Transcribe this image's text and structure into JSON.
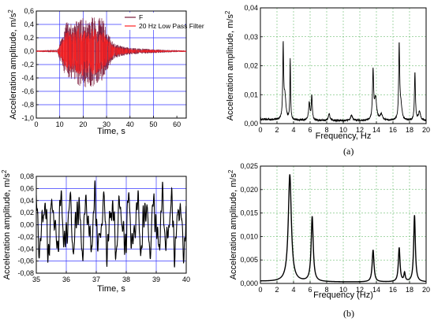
{
  "panel_labels": {
    "a": "(a)",
    "b": "(b)"
  },
  "chart_data": [
    {
      "id": "tl",
      "type": "line",
      "xlabel": "Time, s",
      "ylabel": "Acceleration amplitude, m/s",
      "ylabel_sup": "2",
      "xlim": [
        0,
        64
      ],
      "ylim": [
        -1.0,
        0.6
      ],
      "x_ticks": [
        0,
        10,
        20,
        30,
        40,
        50,
        60
      ],
      "y_ticks": [
        0.6,
        0.4,
        0.2,
        0.0,
        -0.2,
        -0.4,
        -0.6,
        -0.8,
        -1.0
      ],
      "y_tick_labels": [
        "0,6",
        "0,4",
        "0,2",
        "0,0",
        "-0,2",
        "-0,4",
        "-0,6",
        "-0,8",
        "-1,0"
      ],
      "grid": true,
      "legend_position": "top-right",
      "series": [
        {
          "name": "F",
          "color": "#7a1a3a",
          "envelope": {
            "x": [
              0,
              9,
              11,
              13,
              16,
              18,
              20,
              22,
              24,
              26,
              28,
              30,
              33,
              36,
              40,
              45,
              50,
              55,
              64
            ],
            "upper": [
              0.01,
              0.02,
              0.22,
              0.45,
              0.38,
              0.55,
              0.5,
              0.45,
              0.55,
              0.45,
              0.55,
              0.3,
              0.12,
              0.08,
              0.05,
              0.04,
              0.03,
              0.02,
              0.01
            ],
            "lower": [
              -0.01,
              -0.02,
              -0.25,
              -0.45,
              -0.4,
              -0.52,
              -0.62,
              -0.5,
              -0.55,
              -0.5,
              -0.45,
              -0.3,
              -0.12,
              -0.08,
              -0.05,
              -0.04,
              -0.03,
              -0.02,
              -0.01
            ]
          }
        },
        {
          "name": "20 Hz Low Pass Filter",
          "color": "#ff2020",
          "envelope": {
            "x": [
              0,
              9,
              11,
              13,
              16,
              18,
              20,
              22,
              24,
              26,
              28,
              30,
              33,
              36,
              40,
              45,
              50,
              55,
              64
            ],
            "upper": [
              0.01,
              0.01,
              0.15,
              0.3,
              0.28,
              0.35,
              0.33,
              0.3,
              0.35,
              0.3,
              0.33,
              0.2,
              0.08,
              0.05,
              0.03,
              0.02,
              0.02,
              0.01,
              0.01
            ],
            "lower": [
              -0.01,
              -0.01,
              -0.16,
              -0.3,
              -0.28,
              -0.35,
              -0.38,
              -0.32,
              -0.35,
              -0.33,
              -0.3,
              -0.2,
              -0.08,
              -0.05,
              -0.03,
              -0.02,
              -0.02,
              -0.01,
              -0.01
            ]
          }
        }
      ]
    },
    {
      "id": "tr",
      "type": "line",
      "xlabel": "Frequency,  Hz",
      "ylabel": "Acceleration amplitude, m/s",
      "ylabel_sup": "2",
      "xlim": [
        0,
        20
      ],
      "ylim": [
        0,
        0.04
      ],
      "x_ticks": [
        0,
        2,
        4,
        6,
        8,
        10,
        12,
        14,
        16,
        18,
        20
      ],
      "y_ticks": [
        0,
        0.01,
        0.02,
        0.03,
        0.04
      ],
      "y_tick_labels": [
        "0,00",
        "0,01",
        "0,02",
        "0,03",
        "0,04"
      ],
      "grid": true,
      "baseline": 0.001,
      "series": [
        {
          "name": "",
          "color": "#000000",
          "peaks": [
            {
              "f": 2.75,
              "a": 0.0248,
              "w": 0.06
            },
            {
              "f": 2.95,
              "a": 0.008,
              "w": 0.15
            },
            {
              "f": 3.6,
              "a": 0.021,
              "w": 0.05
            },
            {
              "f": 5.9,
              "a": 0.006,
              "w": 0.1
            },
            {
              "f": 6.2,
              "a": 0.0085,
              "w": 0.07
            },
            {
              "f": 8.3,
              "a": 0.0025,
              "w": 0.1
            },
            {
              "f": 11.0,
              "a": 0.0018,
              "w": 0.15
            },
            {
              "f": 13.6,
              "a": 0.017,
              "w": 0.08
            },
            {
              "f": 13.9,
              "a": 0.0075,
              "w": 0.15
            },
            {
              "f": 14.6,
              "a": 0.0022,
              "w": 0.15
            },
            {
              "f": 16.75,
              "a": 0.0255,
              "w": 0.07
            },
            {
              "f": 16.95,
              "a": 0.005,
              "w": 0.15
            },
            {
              "f": 18.65,
              "a": 0.0165,
              "w": 0.07
            },
            {
              "f": 19.2,
              "a": 0.003,
              "w": 0.15
            }
          ]
        }
      ]
    },
    {
      "id": "bl",
      "type": "line",
      "xlabel": "Time, s",
      "ylabel": "Acceleration amplitude, m/s",
      "ylabel_sup": "2",
      "xlim": [
        35,
        40
      ],
      "ylim": [
        -0.08,
        0.08
      ],
      "x_ticks": [
        35,
        36,
        37,
        38,
        39,
        40
      ],
      "y_ticks": [
        0.08,
        0.06,
        0.04,
        0.02,
        0.0,
        -0.02,
        -0.04,
        -0.06,
        -0.08
      ],
      "y_tick_labels": [
        "0,08",
        "0,06",
        "0,04",
        "0,02",
        "0,00",
        "-0,02",
        "-0,04",
        "-0,06",
        "-0,08"
      ],
      "grid": true,
      "series": [
        {
          "name": "",
          "color": "#000000",
          "components": [
            {
              "amp": 0.035,
              "freq": 3.55,
              "phase": 0.4
            },
            {
              "amp": 0.018,
              "freq": 6.2,
              "phase": 1.2
            },
            {
              "amp": 0.01,
              "freq": 13.7,
              "phase": 0.2
            },
            {
              "amp": 0.007,
              "freq": 16.8,
              "phase": 2.1
            },
            {
              "amp": 0.006,
              "freq": 18.7,
              "phase": 0.9
            }
          ]
        }
      ]
    },
    {
      "id": "br",
      "type": "line",
      "xlabel": "Frequency (Hz)",
      "ylabel": "Acceleration amplitude, m/s",
      "ylabel_sup": "2",
      "xlim": [
        0,
        20
      ],
      "ylim": [
        0,
        0.025
      ],
      "x_ticks": [
        0,
        2,
        4,
        6,
        8,
        10,
        12,
        14,
        16,
        18,
        20
      ],
      "y_ticks": [
        0,
        0.005,
        0.01,
        0.015,
        0.02,
        0.025
      ],
      "y_tick_labels": [
        "0,000",
        "0,005",
        "0,010",
        "0,015",
        "0,020",
        "0,025"
      ],
      "grid": true,
      "baseline": 0.0003,
      "series": [
        {
          "name": "",
          "color": "#000000",
          "peaks": [
            {
              "f": 3.55,
              "a": 0.0228,
              "w": 0.22
            },
            {
              "f": 6.25,
              "a": 0.0138,
              "w": 0.15
            },
            {
              "f": 13.6,
              "a": 0.0068,
              "w": 0.13
            },
            {
              "f": 16.75,
              "a": 0.0072,
              "w": 0.12
            },
            {
              "f": 17.4,
              "a": 0.0018,
              "w": 0.1
            },
            {
              "f": 18.6,
              "a": 0.0142,
              "w": 0.12
            }
          ]
        }
      ]
    }
  ]
}
